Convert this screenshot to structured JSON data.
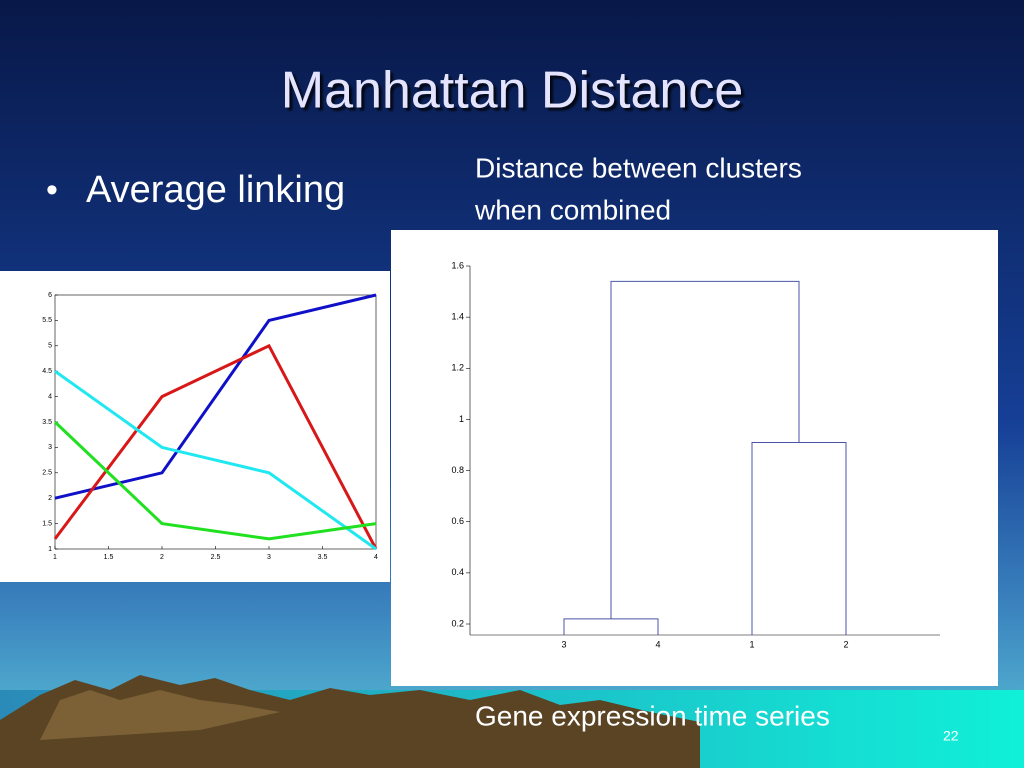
{
  "slide": {
    "title": "Manhattan Distance",
    "bullet": "Average linking",
    "caption": [
      "Distance between clusters",
      "when combined"
    ],
    "footer": "Gene expression time series",
    "page_number": "22"
  },
  "chart_data": [
    {
      "type": "line",
      "x": [
        1,
        2,
        3,
        4
      ],
      "series": [
        {
          "color": "#1010c8",
          "values": [
            2,
            2.5,
            5.5,
            6
          ]
        },
        {
          "color": "#d81818",
          "values": [
            1.2,
            4,
            5,
            1
          ]
        },
        {
          "color": "#20e8f0",
          "values": [
            4.5,
            3,
            2.5,
            1
          ]
        },
        {
          "color": "#20e020",
          "values": [
            3.5,
            1.5,
            1.2,
            1.5
          ]
        }
      ],
      "xlim": [
        1,
        4
      ],
      "xticks": [
        1,
        1.5,
        2,
        2.5,
        3,
        3.5,
        4
      ],
      "ylim": [
        1,
        6
      ],
      "yticks": [
        1,
        1.5,
        2,
        2.5,
        3,
        3.5,
        4,
        4.5,
        5,
        5.5,
        6
      ]
    },
    {
      "type": "dendrogram",
      "color": "#4a55a8",
      "tree": {
        "height": 1.54,
        "children": [
          {
            "height": 0.22,
            "children": [
              {
                "label": "3"
              },
              {
                "label": "4"
              }
            ]
          },
          {
            "height": 0.91,
            "children": [
              {
                "label": "1"
              },
              {
                "label": "2"
              }
            ]
          }
        ]
      },
      "ylim": [
        0.157,
        1.6
      ],
      "yticks": [
        0.2,
        0.4,
        0.6,
        0.8,
        1,
        1.2,
        1.4,
        1.6
      ]
    }
  ]
}
